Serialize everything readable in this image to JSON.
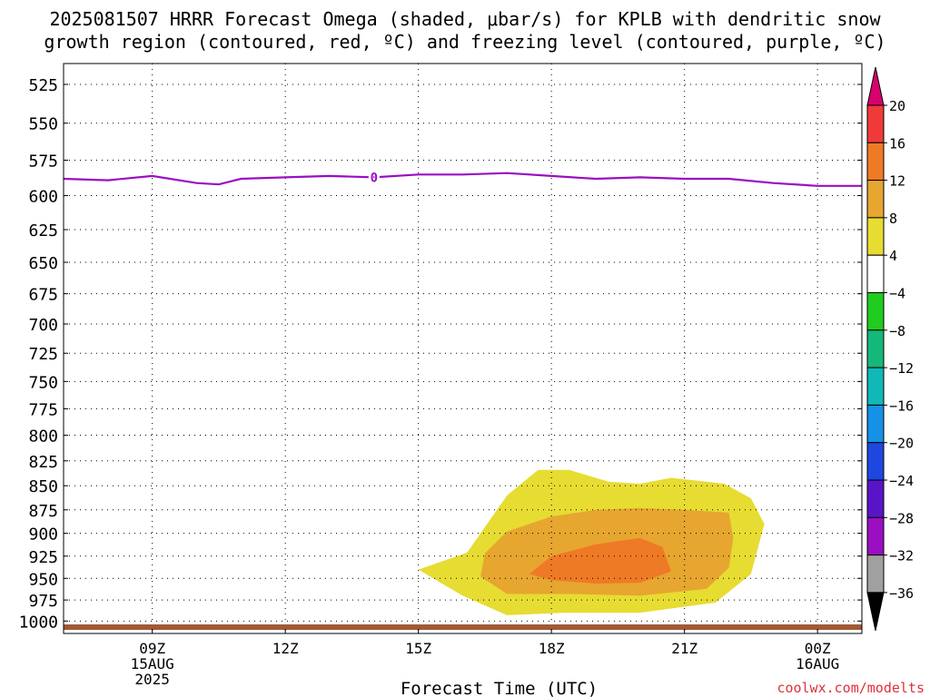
{
  "title_line1": "2025081507 HRRR Forecast Omega (shaded, μbar/s) for KPLB with dendritic snow",
  "title_line2": "growth region (contoured, red, ºC) and freezing level (contoured, purple, ºC)",
  "watermark": "coolwx.com/modelts",
  "chart_data": {
    "type": "heatmap",
    "xlabel": "Forecast Time (UTC)",
    "x_range": [
      7,
      25
    ],
    "x_ticks": [
      {
        "x": 9,
        "lines": [
          "09Z",
          "15AUG",
          "2025"
        ]
      },
      {
        "x": 12,
        "lines": [
          "12Z"
        ]
      },
      {
        "x": 15,
        "lines": [
          "15Z"
        ]
      },
      {
        "x": 18,
        "lines": [
          "18Z"
        ]
      },
      {
        "x": 21,
        "lines": [
          "21Z"
        ]
      },
      {
        "x": 24,
        "lines": [
          "00Z",
          "16AUG"
        ]
      }
    ],
    "y_ticks": [
      525,
      550,
      575,
      600,
      625,
      650,
      675,
      700,
      725,
      750,
      775,
      800,
      825,
      850,
      875,
      900,
      925,
      950,
      975,
      1000
    ],
    "y_range": [
      512,
      1015
    ],
    "y_scale": "pressure (log)",
    "grid": true,
    "colorbar": {
      "labels": [
        "20",
        "16",
        "12",
        "8",
        "4",
        "−4",
        "−8",
        "−12",
        "−16",
        "−20",
        "−24",
        "−28",
        "−32",
        "−36"
      ],
      "colors": [
        "#d9006f",
        "#f03a3a",
        "#ef7a25",
        "#e6a630",
        "#e7dc32",
        "#ffffff",
        "#1fcc1f",
        "#15b87a",
        "#10b8b8",
        "#1591e6",
        "#1e47e0",
        "#5a14c8",
        "#9a0fc2",
        "#a0a0a0",
        "#000000"
      ]
    },
    "omega_shading": [
      {
        "value_range": [
          4,
          8
        ],
        "color": "#e7dc32",
        "polygon": [
          [
            15,
            940
          ],
          [
            16.1,
            921
          ],
          [
            17,
            860
          ],
          [
            17.7,
            834
          ],
          [
            18.4,
            834
          ],
          [
            19.3,
            846
          ],
          [
            20,
            848
          ],
          [
            20.7,
            842
          ],
          [
            21.9,
            848
          ],
          [
            22.5,
            863
          ],
          [
            22.8,
            890
          ],
          [
            22.5,
            945
          ],
          [
            21.7,
            978
          ],
          [
            20,
            990
          ],
          [
            18.3,
            990
          ],
          [
            17,
            993
          ],
          [
            16,
            970
          ],
          [
            15.5,
            955
          ]
        ]
      },
      {
        "value_range": [
          8,
          12
        ],
        "color": "#e6a630",
        "polygon": [
          [
            16.4,
            948
          ],
          [
            16.5,
            922
          ],
          [
            17,
            898
          ],
          [
            18,
            882
          ],
          [
            19,
            875
          ],
          [
            20,
            873
          ],
          [
            21,
            875
          ],
          [
            22,
            878
          ],
          [
            22.1,
            905
          ],
          [
            22,
            938
          ],
          [
            21.5,
            962
          ],
          [
            20,
            970
          ],
          [
            18.5,
            968
          ],
          [
            17,
            968
          ]
        ]
      },
      {
        "value_range": [
          12,
          16
        ],
        "color": "#ef7a25",
        "polygon": [
          [
            17.5,
            945
          ],
          [
            18,
            925
          ],
          [
            19,
            912
          ],
          [
            20,
            905
          ],
          [
            20.5,
            915
          ],
          [
            20.7,
            942
          ],
          [
            20,
            955
          ],
          [
            19,
            956
          ],
          [
            18,
            952
          ]
        ]
      }
    ],
    "freezing_level": {
      "label": "0",
      "label_x": 14,
      "color": "#9a0fc2",
      "x": [
        7,
        8,
        9,
        10,
        10.5,
        11,
        12,
        13,
        14,
        15,
        16,
        17,
        18,
        19,
        20,
        21,
        22,
        23,
        24,
        25
      ],
      "y": [
        588,
        589,
        586,
        591,
        592,
        588,
        587,
        586,
        587,
        585,
        585,
        584,
        586,
        588,
        587,
        588,
        588,
        591,
        593,
        593
      ]
    },
    "surface_color": "#a05a35"
  }
}
